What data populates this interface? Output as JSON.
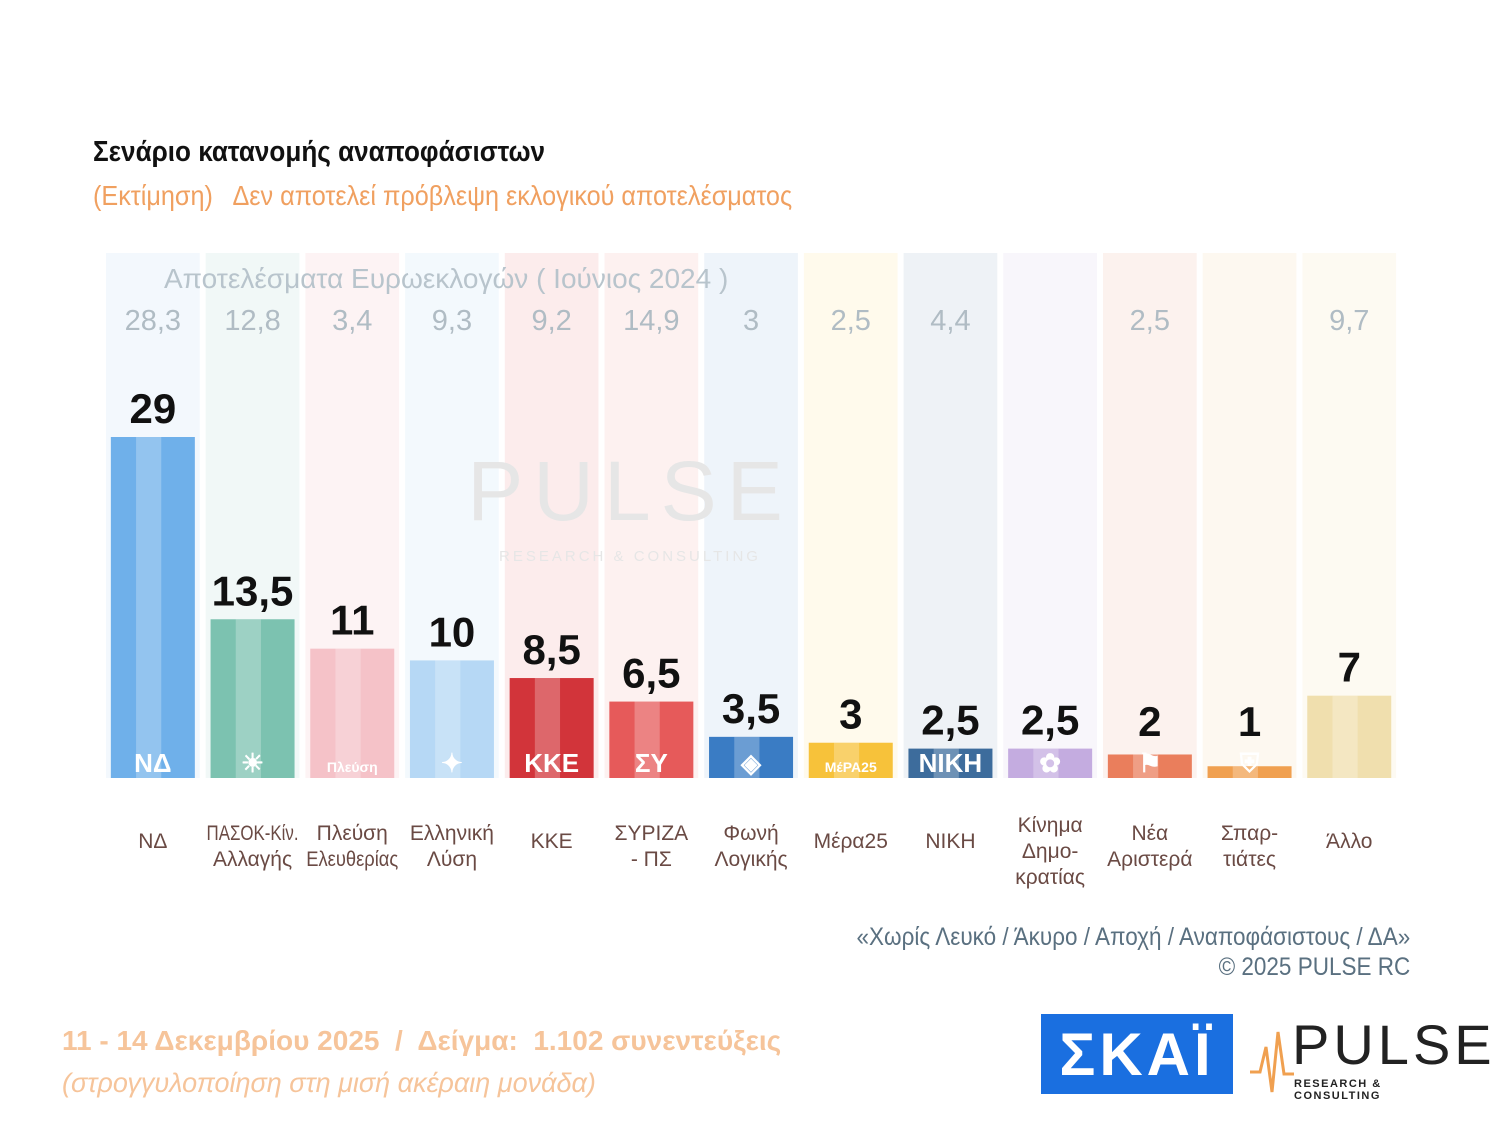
{
  "header": {
    "title": "Σενάριο κατανομής αναποφάσιστων",
    "subtitle": "(Εκτίμηση)   Δεν αποτελεί πρόβλεψη εκλογικού αποτελέσματος"
  },
  "chart_data": {
    "type": "bar",
    "categories": [
      "ΝΔ",
      "ΠΑΣΟΚ-Κίν. Αλλαγής",
      "Πλεύση Ελευθερίας",
      "Ελληνική Λύση",
      "ΚΚΕ",
      "ΣΥΡΙΖΑ - ΠΣ",
      "Φωνή Λογικής",
      "Μέρα25",
      "ΝΙΚΗ",
      "Κίνημα Δημο- κρατίας",
      "Νέα Αριστερά",
      "Σπαρ- τιάτες",
      "Άλλο"
    ],
    "label_lines": [
      [
        "ΝΔ"
      ],
      [
        "ΠΑΣΟΚ-Κίν.",
        "Αλλαγής"
      ],
      [
        "Πλεύση",
        "Ελευθερίας"
      ],
      [
        "Ελληνική",
        "Λύση"
      ],
      [
        "ΚΚΕ"
      ],
      [
        "ΣΥΡΙΖΑ",
        "- ΠΣ"
      ],
      [
        "Φωνή",
        "Λογικής"
      ],
      [
        "Μέρα25"
      ],
      [
        "ΝΙΚΗ"
      ],
      [
        "Κίνημα",
        "Δημο-",
        "κρατίας"
      ],
      [
        "Νέα",
        "Αριστερά"
      ],
      [
        "Σπαρ-",
        "τιάτες"
      ],
      [
        "Άλλο"
      ]
    ],
    "values": [
      29,
      13.5,
      11,
      10,
      8.5,
      6.5,
      3.5,
      3,
      2.5,
      2.5,
      2,
      1,
      7
    ],
    "value_labels": [
      "29",
      "13,5",
      "11",
      "10",
      "8,5",
      "6,5",
      "3,5",
      "3",
      "2,5",
      "2,5",
      "2",
      "1",
      "7"
    ],
    "reference_title": "Αποτελέσματα Ευρωεκλογών  ( Ιούνιος 2024 )",
    "reference_values": [
      "28,3",
      "12,8",
      "3,4",
      "9,3",
      "9,2",
      "14,9",
      "3",
      "2,5",
      "4,4",
      "",
      "2,5",
      "",
      "9,7"
    ],
    "colors": [
      "#6fb0ea",
      "#7cc2b0",
      "#f5c2c8",
      "#b6d8f5",
      "#d2343a",
      "#e65a5a",
      "#3a7cc4",
      "#f7c23a",
      "#3d6c9c",
      "#c4ace0",
      "#ea7e5c",
      "#f0a050",
      "#f0dfae"
    ],
    "column_tints": [
      "#f3f8fd",
      "#f1f8f7",
      "#fdf3f4",
      "#f3f9fd",
      "#fcecec",
      "#fdf1f0",
      "#eef4fa",
      "#fffaec",
      "#eef2f6",
      "#f8f6fb",
      "#fcf2ee",
      "#fdf8f0",
      "#fdfaf2"
    ],
    "logos": [
      "ΝΔ",
      "☀",
      "Πλεύση",
      "✦",
      "ΚΚΕ",
      "ΣΥ",
      "◈",
      "ΜέΡΑ25",
      "ΝΙΚΗ",
      "✿",
      "⚑",
      "⛨",
      ""
    ],
    "ylim": [
      0,
      32
    ],
    "grid": false
  },
  "watermark": {
    "word": "PULSE",
    "tagline": "RESEARCH & CONSULTING"
  },
  "note": {
    "line1": "«Χωρίς Λευκό / Άκυρο / Αποχή / Αναποφάσιστους / ΔΑ»",
    "line2": "©  2025  PULSE RC"
  },
  "footer": {
    "line1": "11 - 14 Δεκεμβρίου 2025  /  Δείγμα:  1.102 συνεντεύξεις",
    "line2": "(στρογγυλοποίηση στη μισή ακέραιη μονάδα)"
  },
  "logos": {
    "skai": "ΣΚΑΪ",
    "pulse": "PULSE",
    "pulse_tagline": "RESEARCH & CONSULTING"
  }
}
